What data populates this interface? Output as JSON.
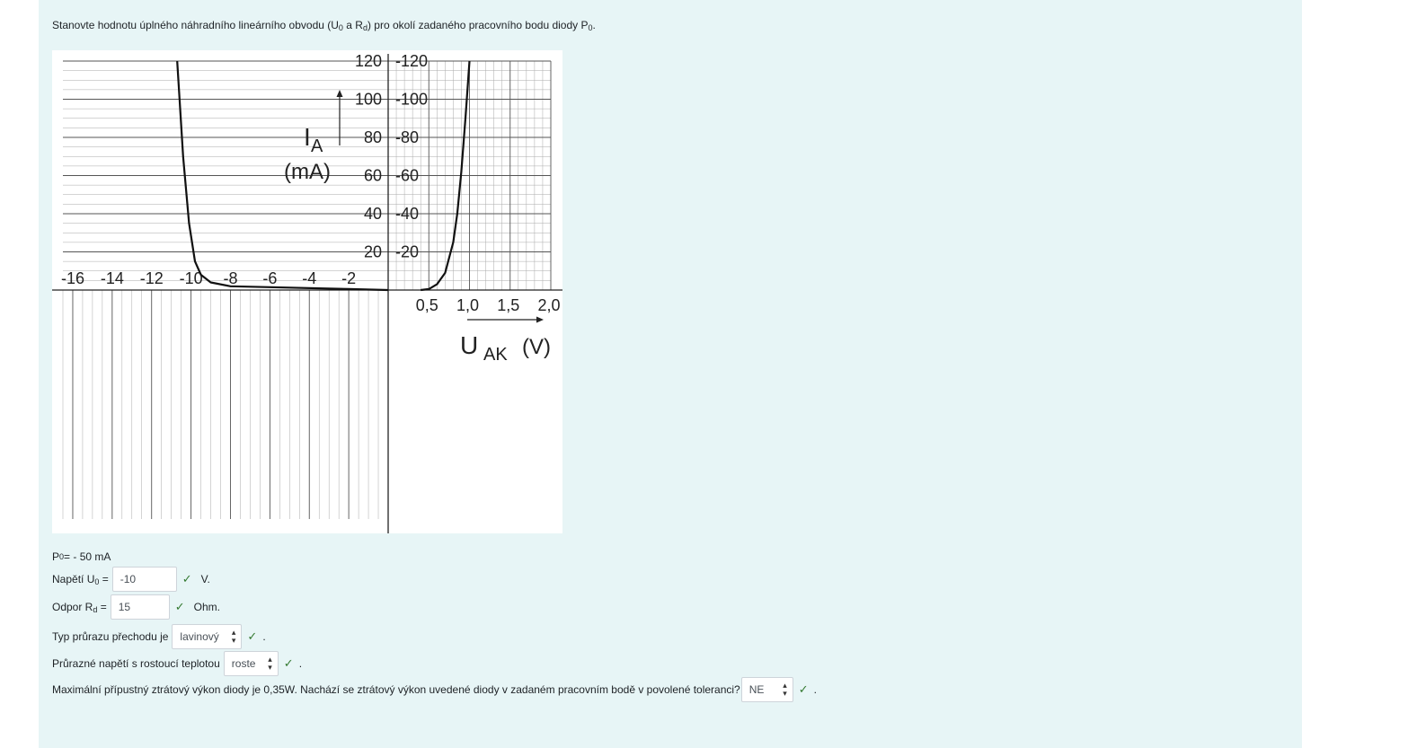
{
  "question": {
    "prefix": "Stanovte hodnotu úplného náhradního lineárního obvodu (U",
    "sub1": "0",
    "mid": " a R",
    "sub2": "d",
    "suffix": ") pro okolí zadaného pracovního bodu diody P",
    "sub3": "0",
    "end": "."
  },
  "chart_data": {
    "type": "line",
    "title": "",
    "xlabel_main": "U",
    "xlabel_sub": "AK",
    "xlabel_unit": "(V)",
    "ylabel_main": "I",
    "ylabel_sub": "A",
    "ylabel_unit": "(mA)",
    "neg_x_ticks": [
      "-16",
      "-14",
      "-12",
      "-10",
      "-8",
      "-6",
      "-4",
      "-2"
    ],
    "pos_x_ticks": [
      "0,5",
      "1,0",
      "1,5",
      "2,0"
    ],
    "pos_y_ticks": [
      "120",
      "100",
      "80",
      "60",
      "40",
      "20"
    ],
    "neg_y_ticks": [
      "-20",
      "-40",
      "-60",
      "-80",
      "-100",
      "-120"
    ],
    "xlim_negative": [
      -16.5,
      0
    ],
    "xlim_positive": [
      0,
      2.0
    ],
    "ylim": [
      -120,
      120
    ],
    "grid": true,
    "series": [
      {
        "forward_curve": {
          "x": [
            0.4,
            0.5,
            0.6,
            0.7,
            0.8,
            0.85,
            0.9,
            0.95,
            1.0
          ],
          "y": [
            0,
            0.5,
            3,
            9,
            25,
            40,
            62,
            90,
            120
          ]
        },
        "reverse_curve": {
          "x": [
            -10.7,
            -10.4,
            -10.1,
            -9.8,
            -9.5,
            -9.0,
            -8.0,
            -6.0,
            -2.0,
            0
          ],
          "y": [
            -120,
            -70,
            -35,
            -15,
            -8,
            -4,
            -2,
            -1.5,
            -0.5,
            0
          ]
        }
      }
    ]
  },
  "operating_point": {
    "label": "P",
    "sub": "0",
    "value": "= - 50 mA"
  },
  "fields": {
    "u0": {
      "label": "Napětí U",
      "sub": "0",
      "eq": " =",
      "value": "-10",
      "unit": "V."
    },
    "rd": {
      "label": "Odpor R",
      "sub": "d",
      "eq": " =",
      "value": "15",
      "unit": "Ohm."
    },
    "breakdown_type": {
      "label": "Typ průrazu přechodu je",
      "value": "lavinový",
      "end": "."
    },
    "breakdown_temp": {
      "label": "Průrazné napětí s rostoucí teplotou",
      "value": "roste",
      "end": "."
    },
    "power": {
      "label": "Maximální přípustný ztrátový výkon diody je 0,35W. Nachází se ztrátový výkon uvedené diody v zadaném pracovním bodě v povolené toleranci?",
      "value": "NE",
      "end": "."
    }
  },
  "icons": {
    "check": "check-icon",
    "select_arrows": "updown-icon"
  },
  "colors": {
    "panel": "#e7f5f6",
    "check": "#357a32"
  }
}
